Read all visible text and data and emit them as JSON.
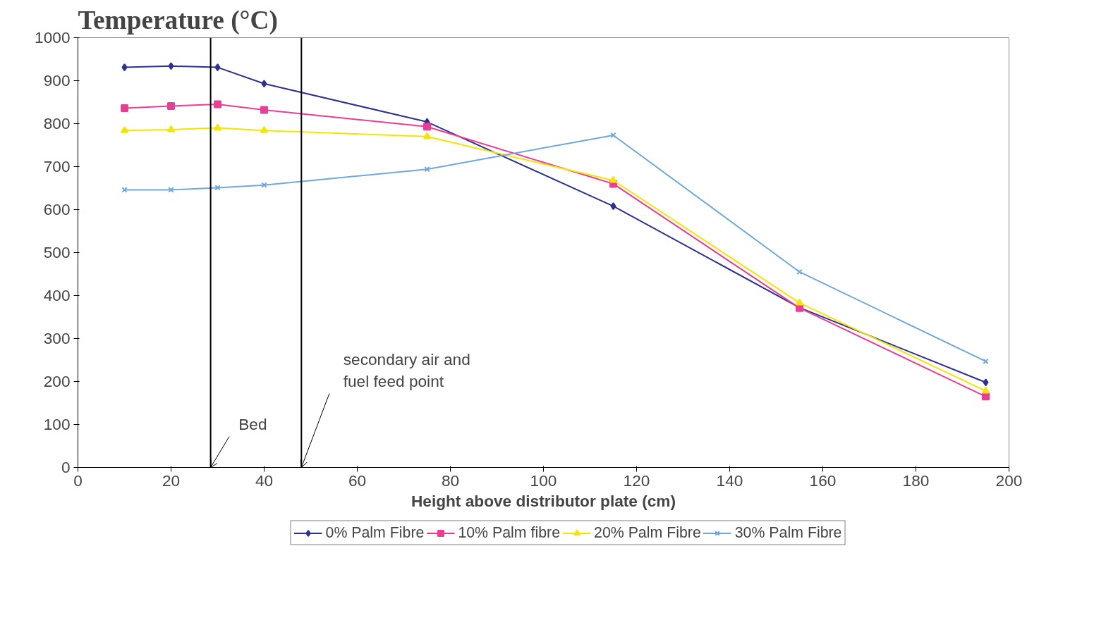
{
  "chart_data": {
    "type": "line",
    "title": "Temperature (°C)",
    "xlabel": "Height above distributor plate (cm)",
    "x": [
      10,
      20,
      30,
      40,
      75,
      115,
      155,
      195
    ],
    "series": [
      {
        "name": "0% Palm Fibre",
        "color": "#2e3192",
        "marker": "diamond",
        "values": [
          931,
          934,
          931,
          893,
          804,
          608,
          372,
          198
        ]
      },
      {
        "name": "10% Palm fibre",
        "color": "#ec3d96",
        "marker": "square",
        "values": [
          836,
          841,
          845,
          832,
          793,
          660,
          371,
          165
        ]
      },
      {
        "name": "20% Palm Fibre",
        "color": "#f2e600",
        "marker": "triangle",
        "values": [
          784,
          786,
          790,
          784,
          770,
          668,
          383,
          178
        ]
      },
      {
        "name": "30% Palm Fibre",
        "color": "#6fa8dc",
        "marker": "cross",
        "values": [
          646,
          646,
          651,
          657,
          694,
          773,
          455,
          247
        ]
      }
    ],
    "xlim": [
      0,
      200
    ],
    "xticks": [
      0,
      20,
      40,
      60,
      80,
      100,
      120,
      140,
      160,
      180,
      200
    ],
    "ylim": [
      0,
      1000
    ],
    "yticks": [
      0,
      100,
      200,
      300,
      400,
      500,
      600,
      700,
      800,
      900,
      1000
    ],
    "ref_lines": [
      {
        "axis": "x",
        "value": 28.5,
        "label": "Bed",
        "color": "#000000"
      },
      {
        "axis": "x",
        "value": 48,
        "label": "secondary air and fuel feed point",
        "color": "#000000"
      }
    ],
    "grid": false,
    "legend": "bottom"
  }
}
